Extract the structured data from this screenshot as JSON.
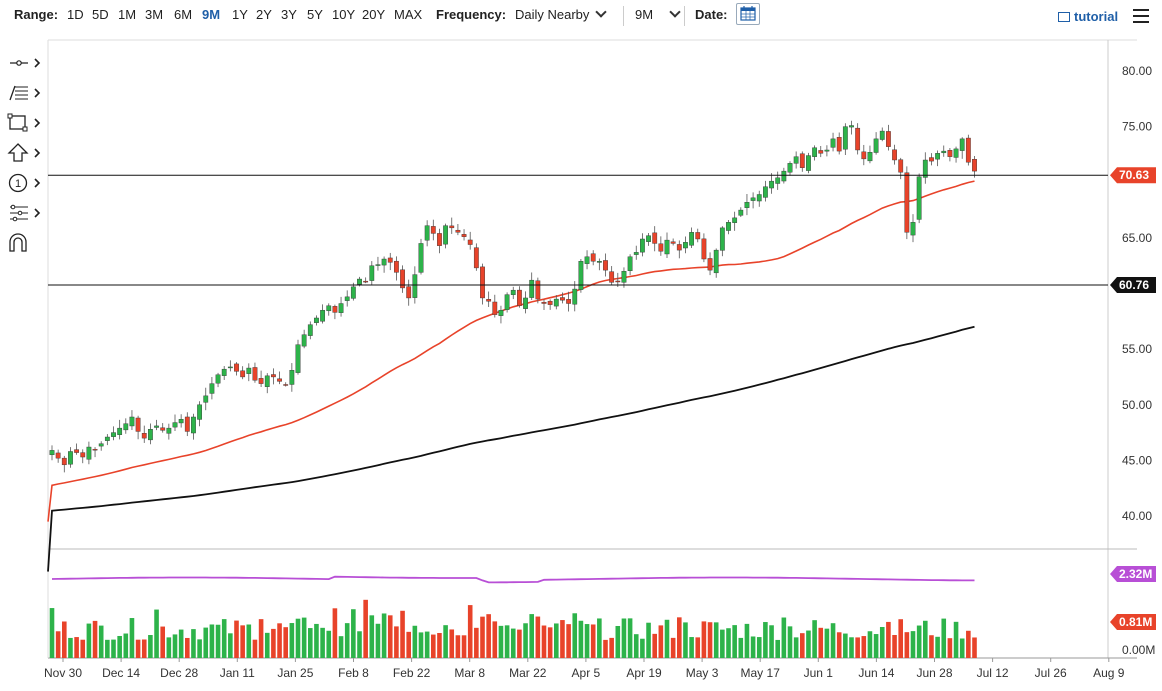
{
  "toolbar": {
    "range_label": "Range:",
    "ranges": [
      "1D",
      "5D",
      "1M",
      "3M",
      "6M",
      "9M",
      "1Y",
      "2Y",
      "3Y",
      "5Y",
      "10Y",
      "20Y",
      "MAX"
    ],
    "active_range": "9M",
    "frequency_label": "Frequency:",
    "frequency_value": "Daily Nearby",
    "period_value": "9M",
    "date_label": "Date:",
    "tutorial_label": "tutorial"
  },
  "left_tools": [
    "crosshair-icon",
    "fibonacci-icon",
    "rectangle-icon",
    "arrow-up-icon",
    "number-marker-icon",
    "pitchfork-icon",
    "magnet-icon"
  ],
  "chart_data": {
    "type": "candlestick",
    "x_ticks": [
      "Nov 30",
      "Dec 14",
      "Dec 28",
      "Jan 11",
      "Jan 25",
      "Feb 8",
      "Feb 22",
      "Mar 8",
      "Mar 22",
      "Apr 5",
      "Apr 19",
      "May 3",
      "May 17",
      "Jun 1",
      "Jun 14",
      "Jun 28",
      "Jul 12",
      "Jul 26",
      "Aug 9"
    ],
    "y_ticks": [
      "80.00",
      "75.00",
      "65.00",
      "55.00",
      "50.00",
      "45.00",
      "40.00"
    ],
    "ylim": [
      38,
      81
    ],
    "volume_ticks": [
      "0.00M"
    ],
    "horizontal_lines": [
      70.63,
      60.76
    ],
    "price_labels": [
      {
        "text": "70.63",
        "value": 70.63,
        "color": "#e8432a"
      },
      {
        "text": "60.76",
        "value": 60.76,
        "color": "#111111"
      }
    ],
    "volume_labels": [
      {
        "text": "2.32M",
        "color": "#b84fd6"
      },
      {
        "text": "0.81M",
        "color": "#e8432a"
      }
    ],
    "colors": {
      "up": "#2db34a",
      "down": "#e8432a",
      "ma_fast": "#e8432a",
      "ma_slow": "#111111",
      "volume_avg": "#b84fd6"
    },
    "closes": [
      45.9,
      45.2,
      44.6,
      45.8,
      45.7,
      45.3,
      46.2,
      46.0,
      46.5,
      47.1,
      47.5,
      47.9,
      48.3,
      48.9,
      47.6,
      47.0,
      47.8,
      48.1,
      47.7,
      47.9,
      48.4,
      48.7,
      47.6,
      48.9,
      50.0,
      50.8,
      51.9,
      52.7,
      53.2,
      53.4,
      53.0,
      52.5,
      53.3,
      52.2,
      51.9,
      52.6,
      52.5,
      52.1,
      51.8,
      53.1,
      55.4,
      56.3,
      57.2,
      57.8,
      58.5,
      58.9,
      58.3,
      59.1,
      59.7,
      60.6,
      61.3,
      61.1,
      62.5,
      62.6,
      63.1,
      62.8,
      61.9,
      60.5,
      59.6,
      61.7,
      64.5,
      66.1,
      65.4,
      64.3,
      66.1,
      65.9,
      65.5,
      65.1,
      64.4,
      62.3,
      59.6,
      59.3,
      58.1,
      58.5,
      59.9,
      60.3,
      58.9,
      59.6,
      61.2,
      59.5,
      59.1,
      59.0,
      59.5,
      59.4,
      59.1,
      60.4,
      62.9,
      63.3,
      62.9,
      62.9,
      62.1,
      61.0,
      61.1,
      62.0,
      63.3,
      63.7,
      64.9,
      65.2,
      64.5,
      63.8,
      64.8,
      64.5,
      63.9,
      64.6,
      65.5,
      64.9,
      63.1,
      62.1,
      63.9,
      65.9,
      66.4,
      66.8,
      67.5,
      68.2,
      68.6,
      68.9,
      69.6,
      70.1,
      70.4,
      71.0,
      71.7,
      72.3,
      71.3,
      72.4,
      73.1,
      72.6,
      72.9,
      73.9,
      72.8,
      75.0,
      75.1,
      72.9,
      72.1,
      72.7,
      73.9,
      74.6,
      73.2,
      72.0,
      70.9,
      65.5,
      66.4,
      70.5,
      72.0,
      71.9,
      72.6,
      72.8,
      72.3,
      73.0,
      73.9,
      71.8,
      71.0
    ]
  }
}
